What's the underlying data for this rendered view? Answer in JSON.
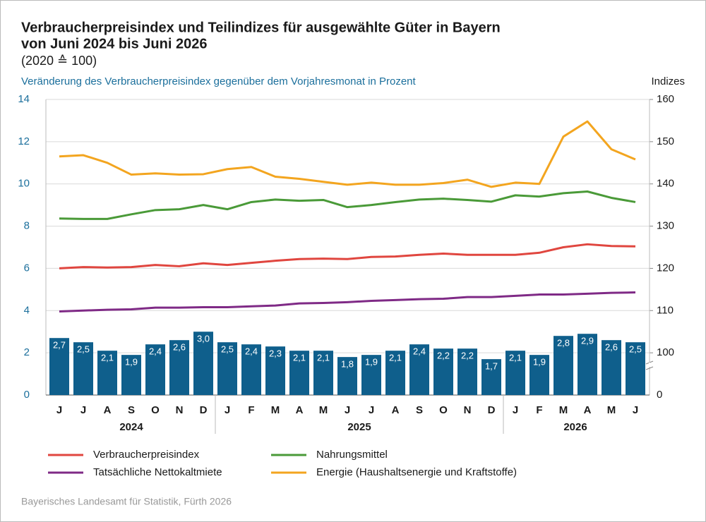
{
  "chart_data": {
    "type": "bar",
    "title": "Verbraucherpreisindex und Teilindizes für ausgewählte Güter in Bayern",
    "subtitle": "von Juni 2024 bis Juni 2026",
    "base_note": "(2020 ≙ 100)",
    "y_label": "Veränderung des Verbraucherpreisindex gegenüber dem Vorjahresmonat in Prozent",
    "y2_label": "Indizes",
    "source": "Bayerisches Landesamt für Statistik, Fürth 2026",
    "categories": [
      "J",
      "J",
      "A",
      "S",
      "O",
      "N",
      "D",
      "J",
      "F",
      "M",
      "A",
      "M",
      "J",
      "J",
      "A",
      "S",
      "O",
      "N",
      "D",
      "J",
      "F",
      "M",
      "A",
      "M",
      "J"
    ],
    "year_groups": [
      {
        "label": "2024",
        "start": 0,
        "end": 6
      },
      {
        "label": "2025",
        "start": 7,
        "end": 18
      },
      {
        "label": "2026",
        "start": 19,
        "end": 24
      }
    ],
    "ylim": [
      0,
      14
    ],
    "yticks": [
      0,
      2,
      4,
      6,
      8,
      10,
      12,
      14
    ],
    "y2lim": [
      90,
      160
    ],
    "y2ticks": [
      100,
      110,
      120,
      130,
      140,
      150,
      160
    ],
    "y2_break_label": "0",
    "grid": true,
    "series": [
      {
        "type": "bar",
        "color": "#0f5f8c",
        "values": [
          2.7,
          2.5,
          2.1,
          1.9,
          2.4,
          2.6,
          3.0,
          2.5,
          2.4,
          2.3,
          2.1,
          2.1,
          1.8,
          1.9,
          2.1,
          2.4,
          2.2,
          2.2,
          1.7,
          2.1,
          1.9,
          2.8,
          2.9,
          2.6,
          2.5
        ],
        "value_labels": [
          "2,7",
          "2,5",
          "2,1",
          "1,9",
          "2,4",
          "2,6",
          "3,0",
          "2,5",
          "2,4",
          "2,3",
          "2,1",
          "2,1",
          "1,8",
          "1,9",
          "2,1",
          "2,4",
          "2,2",
          "2,2",
          "1,7",
          "2,1",
          "1,9",
          "2,8",
          "2,9",
          "2,6",
          "2,5"
        ]
      },
      {
        "type": "line",
        "axis": "y2",
        "name": "Verbraucherpreisindex",
        "color": "#e0463f",
        "values": [
          120.0,
          120.3,
          120.2,
          120.3,
          120.8,
          120.5,
          121.2,
          120.8,
          121.3,
          121.8,
          122.2,
          122.3,
          122.2,
          122.7,
          122.8,
          123.2,
          123.5,
          123.2,
          123.2,
          123.2,
          123.7,
          125.0,
          125.7,
          125.3,
          125.2
        ]
      },
      {
        "type": "line",
        "axis": "y2",
        "name": "Nahrungsmittel",
        "color": "#4a9a38",
        "values": [
          131.8,
          131.7,
          131.7,
          132.8,
          133.8,
          134.0,
          135.0,
          134.0,
          135.7,
          136.3,
          136.0,
          136.2,
          134.5,
          135.0,
          135.7,
          136.3,
          136.5,
          136.2,
          135.8,
          137.3,
          137.0,
          137.8,
          138.2,
          136.7,
          135.7
        ]
      },
      {
        "type": "line",
        "axis": "y2",
        "name": "Tatsächliche Nettokaltmiete",
        "color": "#7f2a86",
        "values": [
          109.8,
          110.0,
          110.2,
          110.3,
          110.7,
          110.7,
          110.8,
          110.8,
          111.0,
          111.2,
          111.7,
          111.8,
          112.0,
          112.3,
          112.5,
          112.7,
          112.8,
          113.2,
          113.2,
          113.5,
          113.8,
          113.8,
          114.0,
          114.2,
          114.3
        ]
      },
      {
        "type": "line",
        "axis": "y2",
        "name": "Energie (Haushaltsenergie und Kraftstoffe)",
        "color": "#f3a51f",
        "values": [
          146.5,
          146.8,
          145.0,
          142.2,
          142.5,
          142.2,
          142.3,
          143.5,
          144.0,
          141.7,
          141.2,
          140.5,
          139.8,
          140.3,
          139.8,
          139.8,
          140.2,
          141.0,
          139.3,
          140.3,
          140.0,
          151.2,
          154.8,
          148.2,
          145.8
        ]
      }
    ]
  }
}
